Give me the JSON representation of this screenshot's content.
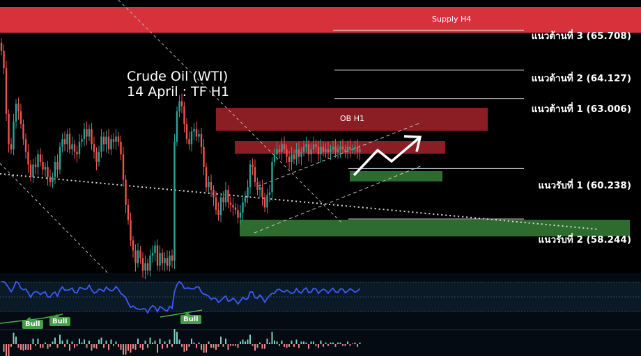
{
  "title": {
    "line1": "Crude Oil (WTI)",
    "line2": "14 April : TF H1"
  },
  "zones": {
    "supply_h4": "Supply  H4",
    "ob_h1": "OB H1"
  },
  "levels": [
    {
      "label": "แนวต้านที่ 3 (65.708)",
      "value": 65.708,
      "type": "resistance"
    },
    {
      "label": "แนวต้านที่ 2 (64.127)",
      "value": 64.127,
      "type": "resistance"
    },
    {
      "label": "แนวต้านที่ 1 (63.006)",
      "value": 63.006,
      "type": "resistance"
    },
    {
      "label": "แนวรับที่ 1 (60.238)",
      "value": 60.238,
      "type": "support"
    },
    {
      "label": "แนวรับที่ 2 (58.244)",
      "value": 58.244,
      "type": "support"
    }
  ],
  "indicator": {
    "bull_labels": [
      "Bull",
      "Bull",
      "Bull"
    ]
  },
  "colors": {
    "bull_candle": "#26a69a",
    "bear_candle": "#ef5350",
    "supply_zone": "#d7323c",
    "ob_zone": "#8b1e24",
    "demand_zone": "#2e6b2e",
    "rsi_line": "#3d5afe",
    "bull_badge": "#43a047"
  },
  "chart_data": {
    "type": "candlestick",
    "x": [
      1,
      2,
      3,
      4,
      5,
      6,
      7,
      8,
      9,
      10,
      11,
      12,
      13,
      14,
      15,
      16,
      17,
      18,
      19,
      20,
      21,
      22,
      23,
      24,
      25,
      26,
      27,
      28,
      29,
      30,
      31,
      32,
      33,
      34,
      35,
      36,
      37,
      38,
      39,
      40,
      41,
      42,
      43,
      44,
      45,
      46,
      47,
      48,
      49,
      50,
      51,
      52,
      53,
      54,
      55,
      56,
      57,
      58,
      59,
      60,
      61,
      62,
      63,
      64,
      65,
      66,
      67,
      68,
      69,
      70,
      71,
      72,
      73,
      74,
      75,
      76,
      77,
      78,
      79,
      80,
      81,
      82,
      83,
      84,
      85,
      86,
      87,
      88,
      89,
      90,
      91,
      92,
      93,
      94,
      95,
      96,
      97,
      98,
      99,
      100,
      101,
      102,
      103,
      104,
      105,
      106,
      107,
      108,
      109,
      110,
      111,
      112,
      113,
      114,
      115,
      116,
      117,
      118,
      119,
      120,
      121,
      122,
      123,
      124,
      125,
      126,
      127,
      128,
      129,
      130,
      131,
      132,
      133,
      134,
      135,
      136,
      137,
      138,
      139,
      140,
      141,
      142,
      143,
      144,
      145,
      146,
      147,
      148
    ],
    "close": [
      64.9,
      64.2,
      62.4,
      61.2,
      61.0,
      62.1,
      62.8,
      62.5,
      62.0,
      61.4,
      60.9,
      60.4,
      59.9,
      60.4,
      60.3,
      60.8,
      60.5,
      60.2,
      60.3,
      59.9,
      59.7,
      59.9,
      60.5,
      60.2,
      61.1,
      61.4,
      61.2,
      61.6,
      61.0,
      61.2,
      60.9,
      60.8,
      61.3,
      61.4,
      61.8,
      61.5,
      61.8,
      61.2,
      60.9,
      60.5,
      60.9,
      61.5,
      61.2,
      61.5,
      61.0,
      61.4,
      61.3,
      61.5,
      61.3,
      60.8,
      59.8,
      58.8,
      58.2,
      57.4,
      57.0,
      56.5,
      57.0,
      56.7,
      56.2,
      56.5,
      56.2,
      56.8,
      56.9,
      57.2,
      56.4,
      56.9,
      56.5,
      56.7,
      56.4,
      56.8,
      56.6,
      61.3,
      62.5,
      62.9,
      62.7,
      62.0,
      61.4,
      61.2,
      61.7,
      61.8,
      61.5,
      61.6,
      61.1,
      60.3,
      59.5,
      59.7,
      59.4,
      59.1,
      58.6,
      58.4,
      59.1,
      58.9,
      59.4,
      58.9,
      58.8,
      58.7,
      58.6,
      58.3,
      58.5,
      58.9,
      59.1,
      59.5,
      60.4,
      60.3,
      59.7,
      59.4,
      59.5,
      59.1,
      58.7,
      59.2,
      59.3,
      60.5,
      60.8,
      61.0,
      60.9,
      61.2,
      61.0,
      60.7,
      60.5,
      60.8,
      60.6,
      61.0,
      60.7,
      60.9,
      61.1,
      61.2,
      60.8,
      61.0,
      61.2,
      61.1,
      60.8,
      61.1,
      60.9,
      61.0,
      60.9,
      61.0,
      61.1,
      60.9,
      61.0,
      61.1,
      61.0,
      60.9,
      61.1,
      61.0,
      61.0,
      61.1,
      60.9,
      61.0
    ],
    "ylim": [
      56.1,
      66.9
    ]
  }
}
